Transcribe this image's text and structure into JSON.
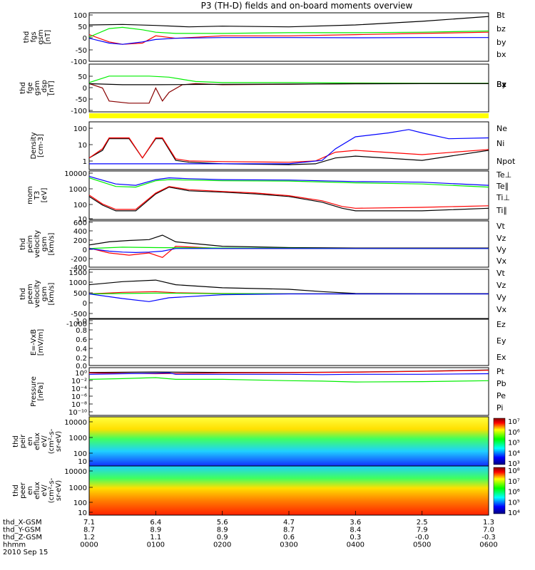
{
  "title": "P3 (TH-D) fields and on-board moments overview",
  "chart_data": {
    "type": "line",
    "title": "P3 (TH-D) fields and on-board moments overview",
    "x_ticks": [
      "0000",
      "0100",
      "0200",
      "0300",
      "0400",
      "0500",
      "0600"
    ],
    "date_label": "2010 Sep 15",
    "orbit_rows": [
      {
        "label": "thd_X-GSM",
        "values": [
          "7.1",
          "6.4",
          "5.6",
          "4.7",
          "3.6",
          "2.5",
          "1.3"
        ]
      },
      {
        "label": "thd_Y-GSM",
        "values": [
          "8.7",
          "8.9",
          "8.9",
          "8.7",
          "8.4",
          "7.9",
          "7.0"
        ]
      },
      {
        "label": "thd_Z-GSM",
        "values": [
          "1.2",
          "1.1",
          "0.9",
          "0.6",
          "0.3",
          "-0.0",
          "-0.3"
        ]
      },
      {
        "label": "hhmm",
        "values": [
          "0000",
          "0100",
          "0200",
          "0300",
          "0400",
          "0500",
          "0600"
        ]
      }
    ],
    "panels": [
      {
        "id": "fgs",
        "ylabel": [
          "thd",
          "fgs",
          "gsm",
          "[nT]"
        ],
        "yticks": [
          "100",
          "50",
          "0",
          "-50",
          "-100"
        ],
        "ylim": [
          -100,
          100
        ],
        "scale": "linear",
        "legend": [
          "Bt",
          "bz",
          "by",
          "bx"
        ],
        "series": [
          {
            "name": "Bt",
            "color": "#000000",
            "x": [
              0,
              0.5,
              1,
              1.5,
              2,
              3,
              4,
              5,
              6
            ],
            "values": [
              50,
              52,
              48,
              42,
              45,
              42,
              50,
              65,
              85
            ]
          },
          {
            "name": "bz",
            "color": "#ff0000",
            "x": [
              0,
              0.3,
              0.5,
              0.8,
              1,
              1.3,
              2,
              3,
              4,
              5,
              6
            ],
            "values": [
              10,
              -20,
              -30,
              -25,
              5,
              -5,
              5,
              5,
              10,
              15,
              20
            ]
          },
          {
            "name": "by",
            "color": "#00ee00",
            "x": [
              0,
              0.3,
              0.5,
              0.8,
              1,
              1.3,
              2,
              3,
              4,
              5,
              6
            ],
            "values": [
              0,
              35,
              40,
              30,
              20,
              15,
              15,
              18,
              18,
              20,
              25
            ]
          },
          {
            "name": "bx",
            "color": "#0000ff",
            "x": [
              0,
              0.3,
              0.5,
              0.8,
              1,
              1.3,
              2,
              3,
              4,
              5,
              6
            ],
            "values": [
              -5,
              -25,
              -30,
              -20,
              -10,
              -5,
              -2,
              -2,
              -3,
              -2,
              -2
            ]
          }
        ]
      },
      {
        "id": "fge",
        "ylabel": [
          "thd",
          "fge",
          "gsm",
          "_dsp",
          "[nT]"
        ],
        "yticks": [
          "50",
          "0",
          "-50",
          "-100"
        ],
        "ylim": [
          -130,
          90
        ],
        "scale": "linear",
        "legend": [
          "Bz",
          "By",
          "Bx"
        ],
        "series": [
          {
            "name": "By",
            "color": "#00ee00",
            "x": [
              0,
              0.3,
              0.6,
              0.9,
              1.2,
              1.6,
              2,
              3,
              4,
              5,
              6
            ],
            "values": [
              5,
              35,
              35,
              35,
              30,
              10,
              5,
              5,
              3,
              2,
              2
            ]
          },
          {
            "name": "Bz",
            "color": "#880000",
            "x": [
              0,
              0.2,
              0.3,
              0.6,
              0.9,
              1.0,
              1.1,
              1.2,
              1.4,
              1.6,
              2,
              3,
              4,
              5,
              6
            ],
            "values": [
              0,
              -20,
              -80,
              -90,
              -90,
              -20,
              -80,
              -40,
              -5,
              0,
              -5,
              -3,
              0,
              0,
              0
            ]
          },
          {
            "name": "Bx",
            "color": "#000000",
            "x": [
              0,
              0.5,
              1,
              2,
              3,
              4,
              5,
              6
            ],
            "values": [
              0,
              -5,
              -5,
              -3,
              -2,
              -1,
              0,
              0
            ]
          }
        ]
      },
      {
        "id": "density",
        "ylabel": [
          "Density",
          "[cm-3]"
        ],
        "yticks": [
          "100",
          "10",
          "1"
        ],
        "ylim": [
          0.5,
          150
        ],
        "scale": "log",
        "legend": [
          "Ne",
          "Ni",
          "Npot"
        ],
        "series": [
          {
            "name": "Ni",
            "color": "#000000",
            "x": [
              0,
              0.2,
              0.3,
              0.6,
              0.8,
              1.0,
              1.1,
              1.3,
              1.5,
              2,
              3,
              3.4,
              3.7,
              4,
              5,
              6
            ],
            "values": [
              2,
              5,
              20,
              20,
              2,
              20,
              20,
              1.5,
              1.2,
              1,
              0.9,
              1,
              2,
              2.5,
              1.5,
              5
            ]
          },
          {
            "name": "Ne",
            "color": "#ff0000",
            "x": [
              0,
              0.2,
              0.3,
              0.6,
              0.8,
              1.0,
              1.1,
              1.3,
              1.5,
              2,
              3,
              3.4,
              3.7,
              4,
              5,
              6
            ],
            "values": [
              2,
              6,
              22,
              22,
              2,
              22,
              22,
              1.8,
              1.4,
              1.3,
              1.2,
              1.4,
              4,
              5,
              3,
              5.5
            ]
          },
          {
            "name": "Npot",
            "color": "#0000ff",
            "x": [
              0,
              0.3,
              1.2,
              2,
              3,
              3.5,
              3.7,
              4.0,
              4.5,
              4.8,
              5,
              5.4,
              6
            ],
            "values": [
              1,
              1,
              1,
              1,
              1,
              1.5,
              6,
              25,
              40,
              60,
              40,
              20,
              22
            ]
          }
        ]
      },
      {
        "id": "mom",
        "ylabel": [
          "mom",
          "T3",
          "[eV]"
        ],
        "yticks": [
          "10000",
          "1000",
          "100",
          "10"
        ],
        "ylim": [
          5,
          12000
        ],
        "scale": "log",
        "legend": [
          "Te⊥",
          "Te∥",
          "Ti⊥",
          "Ti∥"
        ],
        "series": [
          {
            "name": "Ti⊥",
            "color": "#0000ff",
            "x": [
              0,
              0.4,
              0.7,
              1.0,
              1.2,
              1.5,
              2,
              3,
              4,
              5,
              6
            ],
            "values": [
              5000,
              1500,
              1200,
              3000,
              4000,
              3500,
              3000,
              2800,
              2200,
              2000,
              1200
            ]
          },
          {
            "name": "Ti∥",
            "color": "#00ee00",
            "x": [
              0,
              0.4,
              0.7,
              1.0,
              1.2,
              1.5,
              2,
              3,
              4,
              5,
              6
            ],
            "values": [
              4000,
              1000,
              900,
              2500,
              3000,
              2800,
              2500,
              2400,
              1800,
              1500,
              900
            ]
          },
          {
            "name": "Te∥",
            "color": "#000000",
            "x": [
              0,
              0.2,
              0.4,
              0.7,
              1.0,
              1.2,
              1.5,
              2,
              2.5,
              3,
              3.5,
              3.8,
              4,
              5,
              6
            ],
            "values": [
              200,
              50,
              20,
              20,
              300,
              900,
              500,
              400,
              300,
              200,
              80,
              30,
              20,
              20,
              30
            ]
          },
          {
            "name": "Te⊥",
            "color": "#ff0000",
            "x": [
              0,
              0.2,
              0.4,
              0.7,
              1.0,
              1.2,
              1.5,
              2,
              2.5,
              3,
              3.5,
              3.8,
              4,
              5,
              6
            ],
            "values": [
              250,
              60,
              25,
              25,
              350,
              1000,
              600,
              450,
              350,
              230,
              100,
              40,
              30,
              35,
              45
            ]
          }
        ]
      },
      {
        "id": "peim",
        "ylabel": [
          "thd",
          "peim",
          "velocity",
          "gsm",
          "[km/s]"
        ],
        "yticks": [
          "600",
          "400",
          "200",
          "0",
          "-200",
          "-400"
        ],
        "ylim": [
          -420,
          620
        ],
        "scale": "linear",
        "legend": [
          "Vt",
          "Vz",
          "Vy",
          "Vx"
        ],
        "series": [
          {
            "name": "Vt",
            "color": "#000000",
            "x": [
              0,
              0.3,
              0.6,
              0.9,
              1.1,
              1.3,
              2,
              3,
              4,
              5,
              6
            ],
            "values": [
              80,
              150,
              180,
              200,
              300,
              150,
              50,
              20,
              10,
              10,
              10
            ]
          },
          {
            "name": "Vz",
            "color": "#ff0000",
            "x": [
              0,
              0.3,
              0.6,
              0.9,
              1.1,
              1.3,
              2,
              3,
              4,
              5,
              6
            ],
            "values": [
              10,
              -100,
              -150,
              -100,
              -200,
              50,
              0,
              0,
              0,
              0,
              0
            ]
          },
          {
            "name": "Vy",
            "color": "#00ee00",
            "x": [
              0,
              0.5,
              1,
              2,
              3,
              4,
              5,
              6
            ],
            "values": [
              0,
              30,
              20,
              10,
              5,
              0,
              0,
              0
            ]
          },
          {
            "name": "Vx",
            "color": "#0000ff",
            "x": [
              0,
              0.3,
              0.5,
              0.7,
              0.9,
              1.1,
              1.3,
              2,
              3,
              4,
              5,
              6
            ],
            "values": [
              0,
              -60,
              -80,
              -90,
              -80,
              -60,
              0,
              0,
              0,
              0,
              0,
              0
            ]
          }
        ]
      },
      {
        "id": "peem",
        "ylabel": [
          "thd",
          "peem",
          "velocity",
          "gsm",
          "[km/s]"
        ],
        "yticks": [
          "1500",
          "1000",
          "500",
          "0",
          "-500",
          "-1000",
          "-1500"
        ],
        "ylim": [
          -1600,
          1600
        ],
        "scale": "linear",
        "legend": [
          "Vt",
          "Vz",
          "Vy",
          "Vx"
        ],
        "series": [
          {
            "name": "Vt",
            "color": "#000000",
            "x": [
              0,
              0.5,
              1,
              1.3,
              2,
              3,
              3.5,
              4,
              5,
              6
            ],
            "values": [
              600,
              800,
              900,
              600,
              400,
              300,
              150,
              30,
              20,
              20
            ]
          },
          {
            "name": "Vz",
            "color": "#ff0000",
            "x": [
              0,
              0.5,
              1,
              1.3,
              2,
              3,
              4,
              5,
              6
            ],
            "values": [
              0,
              100,
              150,
              80,
              30,
              10,
              0,
              0,
              0
            ]
          },
          {
            "name": "Vy",
            "color": "#00ee00",
            "x": [
              0,
              1,
              2,
              3,
              4,
              5,
              6
            ],
            "values": [
              0,
              50,
              20,
              10,
              0,
              0,
              0
            ]
          },
          {
            "name": "Vx",
            "color": "#0000ff",
            "x": [
              0,
              0.5,
              0.9,
              1.2,
              2,
              3,
              4,
              5,
              6
            ],
            "values": [
              0,
              -300,
              -500,
              -250,
              -50,
              0,
              0,
              0,
              0
            ]
          }
        ]
      },
      {
        "id": "efield",
        "ylabel": [
          "E=-VxB",
          "[mV/m]"
        ],
        "yticks": [
          "1.0",
          "0.8",
          "0.6",
          "0.4",
          "0.2",
          "0.0"
        ],
        "ylim": [
          0,
          1
        ],
        "scale": "linear",
        "legend": [
          "Ez",
          "Ey",
          "Ex"
        ],
        "series": []
      },
      {
        "id": "pressure",
        "ylabel": [
          "Pressure",
          "[nPa]"
        ],
        "yticks": [
          "10⁰",
          "10⁻²",
          "10⁻⁴",
          "10⁻⁶",
          "10⁻⁸",
          "10⁻¹⁰"
        ],
        "ylim": [
          1e-10,
          10
        ],
        "scale": "log",
        "legend": [
          "Pt",
          "Pb",
          "Pe",
          "Pi"
        ],
        "series": [
          {
            "name": "Pt",
            "color": "#000000",
            "x": [
              0,
              1,
              2,
              3,
              4,
              5,
              6
            ],
            "values": [
              0.8,
              1,
              0.8,
              0.8,
              1,
              1.5,
              3
            ]
          },
          {
            "name": "Pb",
            "color": "#ff0000",
            "x": [
              0,
              1,
              2,
              3,
              4,
              5,
              6
            ],
            "values": [
              0.6,
              0.4,
              0.6,
              0.7,
              0.9,
              1.4,
              2.5
            ]
          },
          {
            "name": "Pe",
            "color": "#00ee00",
            "x": [
              0,
              0.5,
              1,
              1.3,
              2,
              3,
              3.5,
              4,
              5,
              6
            ],
            "values": [
              0.02,
              0.03,
              0.05,
              0.02,
              0.02,
              0.01,
              0.008,
              0.005,
              0.006,
              0.01
            ]
          },
          {
            "name": "Pi",
            "color": "#0000ff",
            "x": [
              0,
              0.5,
              1,
              1.2,
              1.3,
              2,
              3,
              3.5,
              4,
              5,
              6
            ],
            "values": [
              0.3,
              0.4,
              0.5,
              0.6,
              0.3,
              0.3,
              0.3,
              0.25,
              0.3,
              0.3,
              0.4
            ]
          }
        ]
      },
      {
        "id": "peir",
        "ylabel": [
          "thd",
          "peir",
          "en",
          "eflux",
          "eV/",
          "(cm²-s-",
          "sr-eV)"
        ],
        "yticks": [
          "10000",
          "1000",
          "100",
          "10"
        ],
        "scale": "log",
        "type": "heatmap",
        "colorbar": [
          "10⁷",
          "10⁶",
          "10⁵",
          "10⁴",
          "10³"
        ]
      },
      {
        "id": "peer",
        "ylabel": [
          "thd",
          "peer",
          "en",
          "eflux",
          "eV/",
          "(cm²-s-",
          "sr-eV)"
        ],
        "yticks": [
          "10000",
          "1000",
          "100",
          "10"
        ],
        "scale": "log",
        "type": "heatmap",
        "colorbar": [
          "10⁸",
          "10⁷",
          "10⁶",
          "10⁵",
          "10⁴"
        ]
      }
    ]
  }
}
